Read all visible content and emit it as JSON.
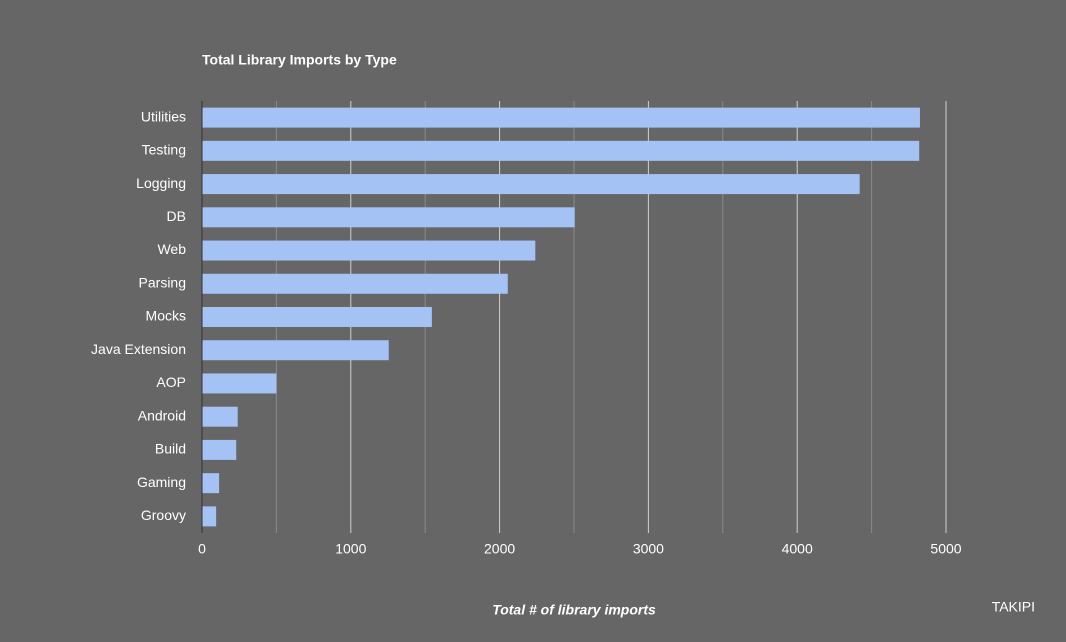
{
  "chart_data": {
    "type": "hbar",
    "title": "Total Library Imports by Type",
    "categories": [
      "Utilities",
      "Testing",
      "Logging",
      "DB",
      "Web",
      "Parsing",
      "Mocks",
      "Java Extension",
      "AOP",
      "Android",
      "Build",
      "Gaming",
      "Groovy"
    ],
    "values": [
      4825,
      4820,
      4420,
      2505,
      2240,
      2055,
      1545,
      1255,
      500,
      240,
      230,
      115,
      95
    ],
    "color": "#a4c2f4",
    "x_label": "Total # of library imports",
    "xlim": [
      0,
      5000
    ],
    "xticks": [
      0,
      1000,
      2000,
      3000,
      4000,
      5000
    ],
    "minor_xticks": [
      500,
      1500,
      2500,
      3500,
      4500
    ],
    "grid": true,
    "watermark": "TAKIPI"
  }
}
